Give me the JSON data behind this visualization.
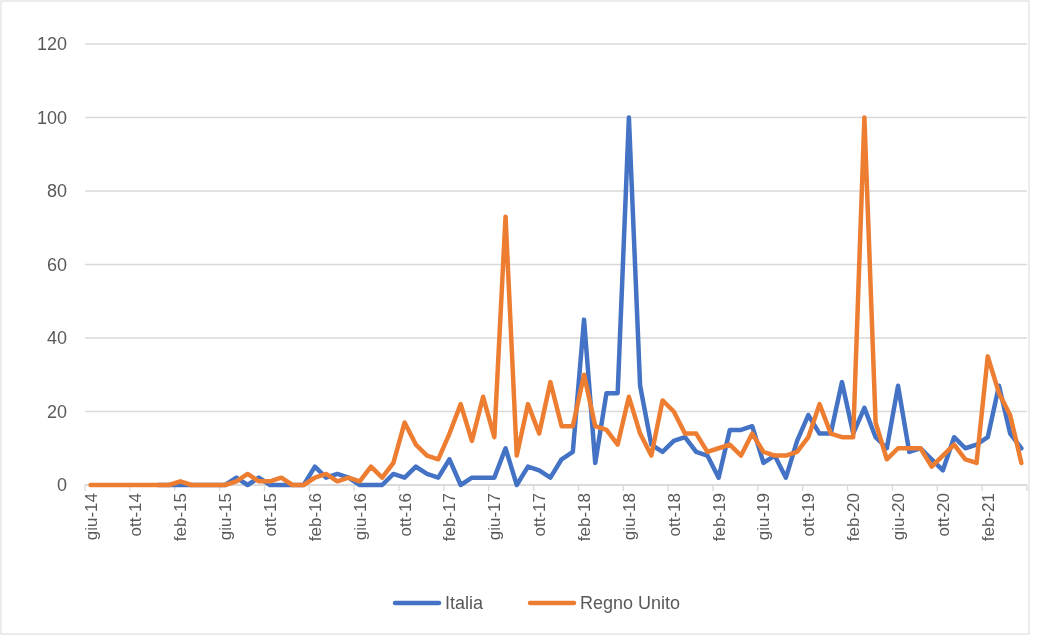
{
  "chart_data": {
    "type": "line",
    "categories": [
      "giu-14",
      null,
      null,
      null,
      "ott-14",
      null,
      null,
      null,
      "feb-15",
      null,
      null,
      null,
      "giu-15",
      null,
      null,
      null,
      "ott-15",
      null,
      null,
      null,
      "feb-16",
      null,
      null,
      null,
      "giu-16",
      null,
      null,
      null,
      "ott-16",
      null,
      null,
      null,
      "feb-17",
      null,
      null,
      null,
      "giu-17",
      null,
      null,
      null,
      "ott-17",
      null,
      null,
      null,
      "feb-18",
      null,
      null,
      null,
      "giu-18",
      null,
      null,
      null,
      "ott-18",
      null,
      null,
      null,
      "feb-19",
      null,
      null,
      null,
      "giu-19",
      null,
      null,
      null,
      "ott-19",
      null,
      null,
      null,
      "feb-20",
      null,
      null,
      null,
      "giu-20",
      null,
      null,
      null,
      "ott-20",
      null,
      null,
      null,
      "feb-21",
      null,
      null,
      null
    ],
    "series": [
      {
        "name": "Italia",
        "color": "#4472c4",
        "values": [
          null,
          null,
          null,
          null,
          null,
          null,
          0,
          0,
          0,
          0,
          0,
          0,
          0,
          2,
          0,
          2,
          0,
          0,
          0,
          0,
          5,
          2,
          3,
          2,
          0,
          0,
          0,
          3,
          2,
          5,
          3,
          2,
          7,
          0,
          2,
          2,
          2,
          10,
          0,
          5,
          4,
          2,
          7,
          9,
          45,
          6,
          25,
          25,
          100,
          27,
          11,
          9,
          12,
          13,
          9,
          8,
          2,
          15,
          15,
          16,
          6,
          8,
          2,
          12,
          19,
          14,
          14,
          28,
          14,
          21,
          13,
          10,
          27,
          9,
          10,
          7,
          4,
          13,
          10,
          11,
          13,
          27,
          14,
          10
        ]
      },
      {
        "name": "Regno Unito",
        "color": "#ed7d31",
        "values": [
          0,
          0,
          0,
          0,
          0,
          0,
          0,
          0,
          1,
          0,
          0,
          0,
          0,
          1,
          3,
          1,
          1,
          2,
          0,
          0,
          2,
          3,
          1,
          2,
          1,
          5,
          2,
          6,
          17,
          11,
          8,
          7,
          14,
          22,
          12,
          24,
          13,
          73,
          8,
          22,
          14,
          28,
          16,
          16,
          30,
          16,
          15,
          11,
          24,
          14,
          8,
          23,
          20,
          14,
          14,
          9,
          10,
          11,
          8,
          14,
          9,
          8,
          8,
          9,
          13,
          22,
          14,
          13,
          13,
          100,
          17,
          7,
          10,
          10,
          10,
          5,
          8,
          11,
          7,
          6,
          35,
          25,
          19,
          6
        ]
      }
    ],
    "ylim": [
      0,
      120
    ],
    "yticks": [
      0,
      20,
      40,
      60,
      80,
      100,
      120
    ],
    "grid": "y",
    "legend": "bottom",
    "line_style": "solid",
    "marker": "none"
  }
}
